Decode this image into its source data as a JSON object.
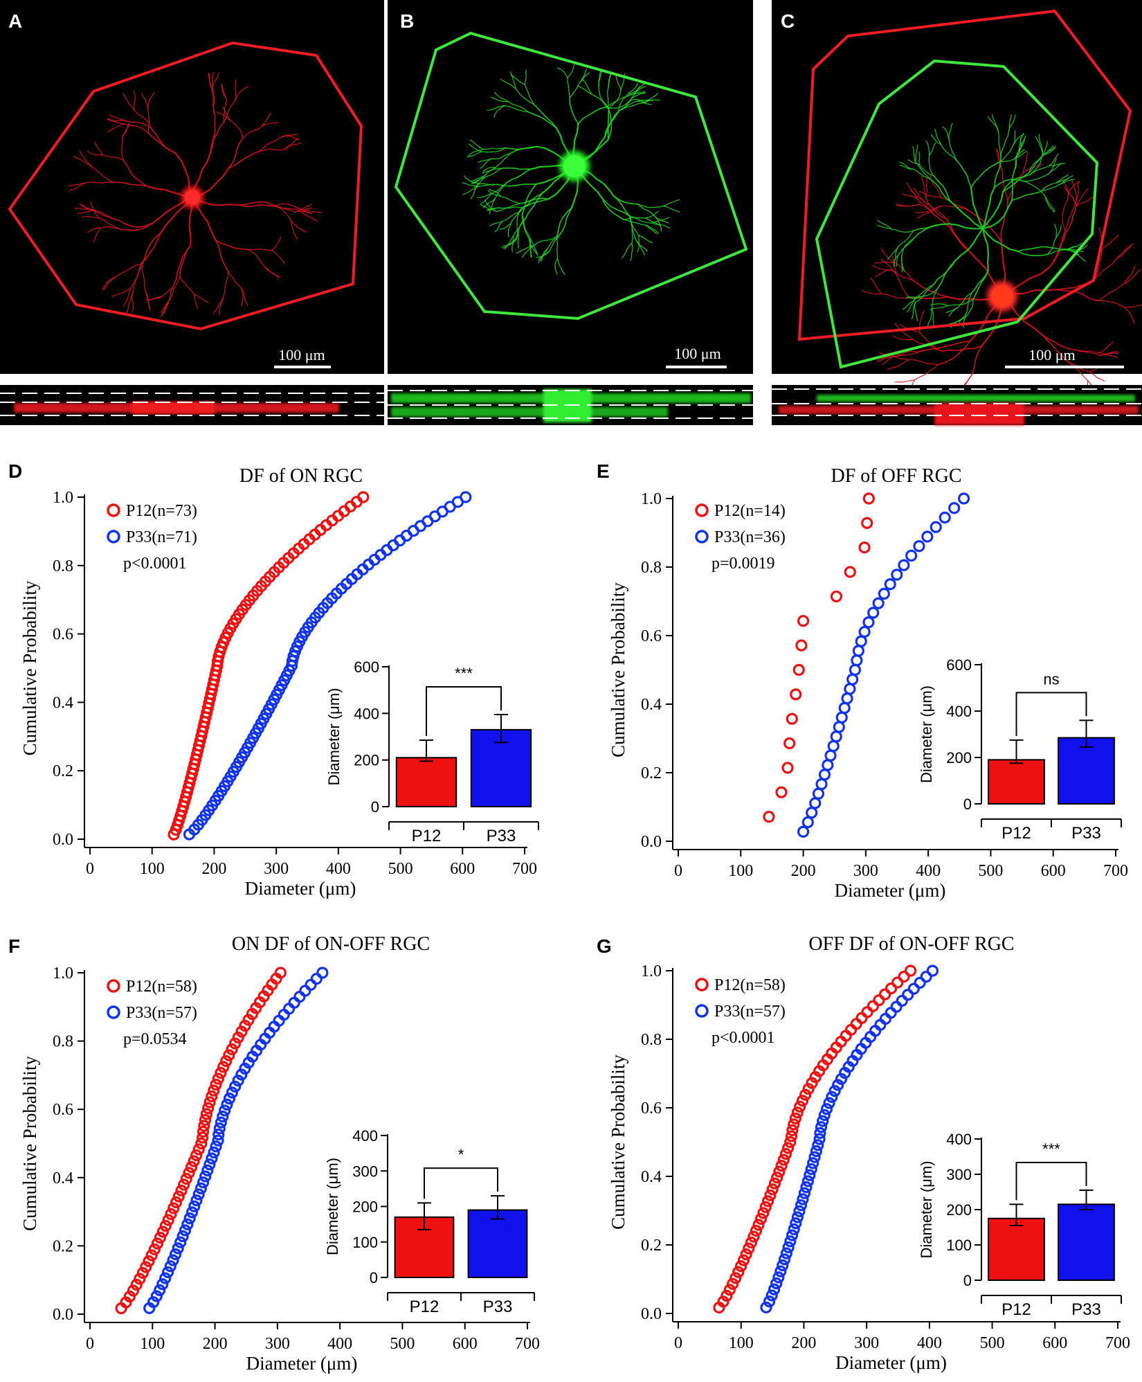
{
  "figure": {
    "panel_letters": [
      "A",
      "B",
      "C",
      "D",
      "E",
      "F",
      "G"
    ],
    "micrographs": [
      {
        "letter": "A",
        "scale_label": "100 μm",
        "colors": [
          "#e8141b"
        ]
      },
      {
        "letter": "B",
        "scale_label": "100 μm",
        "colors": [
          "#22dd22"
        ]
      },
      {
        "letter": "C",
        "scale_label": "100 μm",
        "colors": [
          "#e8141b",
          "#22dd22"
        ]
      }
    ]
  },
  "chart_data": [
    {
      "panel": "D",
      "type": "scatter",
      "title": "DF of ON RGC",
      "xlabel": "Diameter (μm)",
      "ylabel": "Cumulative  Probability",
      "xlim": [
        0,
        700
      ],
      "ylim": [
        0,
        1
      ],
      "xticks": [
        "0",
        "100",
        "200",
        "300",
        "400",
        "500",
        "600",
        "700"
      ],
      "yticks": [
        "0.0",
        "0.2",
        "0.4",
        "0.6",
        "0.8",
        "1.0"
      ],
      "series": [
        {
          "name": "P12",
          "label": "P12(n=73)",
          "n": 73,
          "color": "#ee1111",
          "min": 135,
          "max": 440,
          "median": 205
        },
        {
          "name": "P33",
          "label": "P33(n=71)",
          "n": 71,
          "color": "#1133ee",
          "min": 160,
          "max": 605,
          "median": 325
        }
      ],
      "pvalue": "p<0.0001",
      "inset": {
        "type": "bar",
        "ylabel": "Diameter (μm)",
        "ylim": [
          0,
          600
        ],
        "yticks": [
          "0",
          "200",
          "400",
          "600"
        ],
        "categories": [
          "P12",
          "P33"
        ],
        "values": [
          210,
          330
        ],
        "errors": [
          [
            195,
            285
          ],
          [
            275,
            395
          ]
        ],
        "significance": "***"
      }
    },
    {
      "panel": "E",
      "type": "scatter",
      "title": "DF of OFF RGC",
      "xlabel": "Diameter (μm)",
      "ylabel": "Cumulative  Probability",
      "xlim": [
        0,
        700
      ],
      "ylim": [
        0,
        1
      ],
      "xticks": [
        "0",
        "100",
        "200",
        "300",
        "400",
        "500",
        "600",
        "700"
      ],
      "yticks": [
        "0.0",
        "0.2",
        "0.4",
        "0.6",
        "0.8",
        "1.0"
      ],
      "series": [
        {
          "name": "P12",
          "label": "P12(n=14)",
          "n": 14,
          "color": "#ee1111",
          "x": [
            145,
            165,
            175,
            178,
            182,
            188,
            193,
            197,
            200,
            253,
            275,
            298,
            302,
            305
          ]
        },
        {
          "name": "P33",
          "label": "P33(n=36)",
          "n": 36,
          "color": "#1133ee",
          "min": 200,
          "max": 457,
          "median": 285
        }
      ],
      "pvalue": "p=0.0019",
      "inset": {
        "type": "bar",
        "ylabel": "Diameter (μm)",
        "ylim": [
          0,
          600
        ],
        "yticks": [
          "0",
          "200",
          "400",
          "600"
        ],
        "categories": [
          "P12",
          "P33"
        ],
        "values": [
          190,
          285
        ],
        "errors": [
          [
            175,
            275
          ],
          [
            245,
            360
          ]
        ],
        "significance": "ns"
      }
    },
    {
      "panel": "F",
      "type": "scatter",
      "title": "ON DF of ON-OFF RGC",
      "xlabel": "Diameter (μm)",
      "ylabel": "Cumulative  Probability",
      "xlim": [
        0,
        700
      ],
      "ylim": [
        0,
        1
      ],
      "xticks": [
        "0",
        "100",
        "200",
        "300",
        "400",
        "500",
        "600",
        "700"
      ],
      "yticks": [
        "0.0",
        "0.2",
        "0.4",
        "0.6",
        "0.8",
        "1.0"
      ],
      "series": [
        {
          "name": "P12",
          "label": "P12(n=58)",
          "n": 58,
          "color": "#ee1111",
          "min": 50,
          "max": 305,
          "median": 180
        },
        {
          "name": "P33",
          "label": "P33(n=57)",
          "n": 57,
          "color": "#1133ee",
          "min": 95,
          "max": 372,
          "median": 205
        }
      ],
      "pvalue": "p=0.0534",
      "inset": {
        "type": "bar",
        "ylabel": "Diameter (μm)",
        "ylim": [
          0,
          400
        ],
        "yticks": [
          "0",
          "100",
          "200",
          "300",
          "400"
        ],
        "categories": [
          "P12",
          "P33"
        ],
        "values": [
          170,
          190
        ],
        "errors": [
          [
            135,
            210
          ],
          [
            165,
            230
          ]
        ],
        "significance": "*"
      }
    },
    {
      "panel": "G",
      "type": "scatter",
      "title": "OFF DF of ON-OFF RGC",
      "xlabel": "Diameter (μm)",
      "ylabel": "Cumulative  Probability",
      "xlim": [
        0,
        700
      ],
      "ylim": [
        0,
        1
      ],
      "xticks": [
        "0",
        "100",
        "200",
        "300",
        "400",
        "500",
        "600",
        "700"
      ],
      "yticks": [
        "0.0",
        "0.2",
        "0.4",
        "0.6",
        "0.8",
        "1.0"
      ],
      "series": [
        {
          "name": "P12",
          "label": "P12(n=58)",
          "n": 58,
          "color": "#ee1111",
          "min": 65,
          "max": 370,
          "median": 180
        },
        {
          "name": "P33",
          "label": "P33(n=57)",
          "n": 57,
          "color": "#1133ee",
          "min": 140,
          "max": 405,
          "median": 225
        }
      ],
      "pvalue": "p<0.0001",
      "inset": {
        "type": "bar",
        "ylabel": "Diameter (μm)",
        "ylim": [
          0,
          400
        ],
        "yticks": [
          "0",
          "100",
          "200",
          "300",
          "400"
        ],
        "categories": [
          "P12",
          "P33"
        ],
        "values": [
          175,
          215
        ],
        "errors": [
          [
            155,
            215
          ],
          [
            200,
            255
          ]
        ],
        "significance": "***"
      }
    }
  ]
}
